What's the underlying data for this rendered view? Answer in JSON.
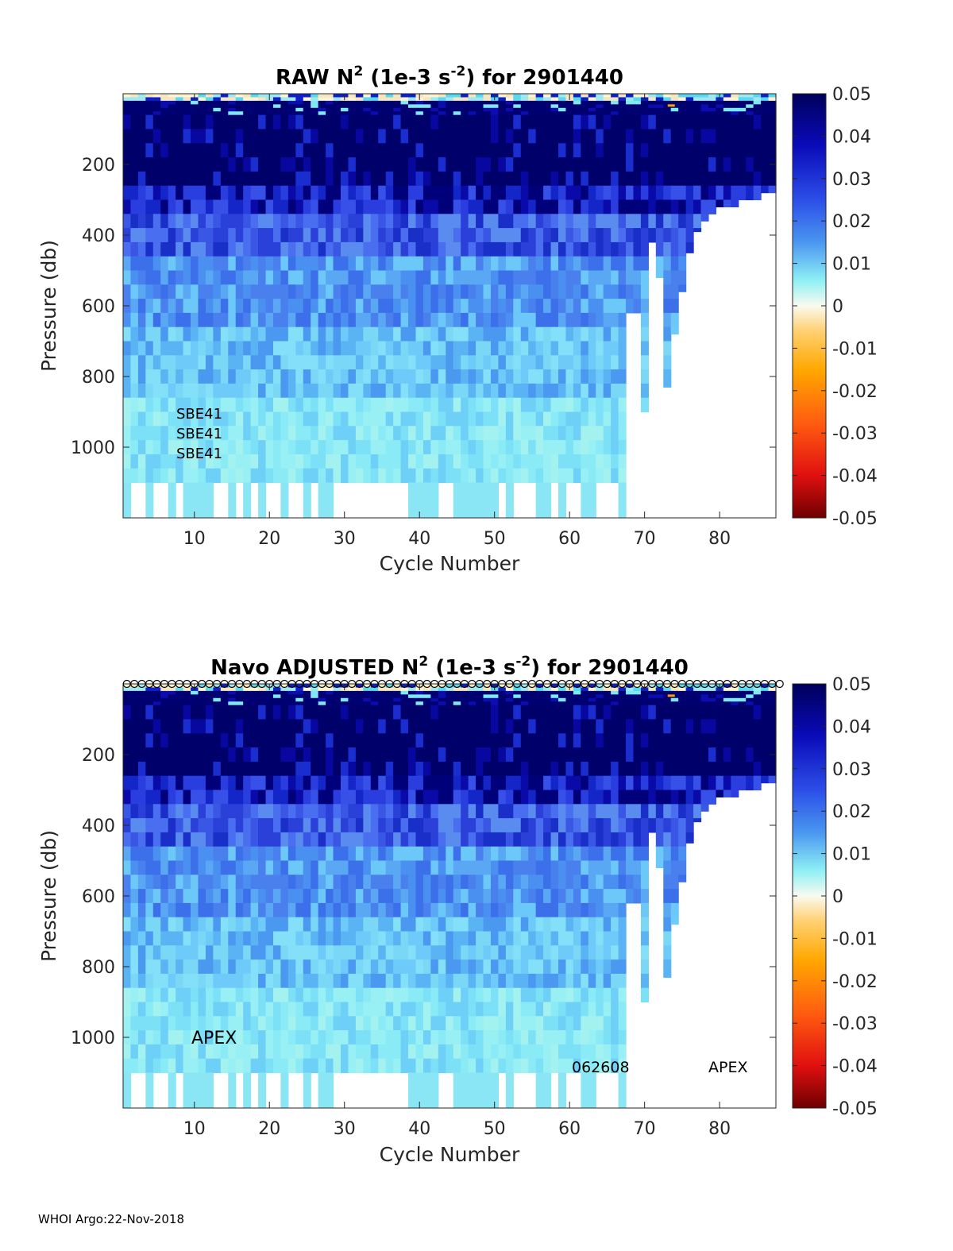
{
  "footer": "WHOI Argo:22-Nov-2018",
  "chart_data": [
    {
      "type": "heatmap",
      "title": "RAW N2 (1e-3 s-2) for 2901440",
      "title_parts": {
        "prefix": "RAW N",
        "sup1": "2",
        "mid": " (1e-3 s",
        "sup2": "-2",
        "suffix": ") for 2901440"
      },
      "xlabel": "Cycle Number",
      "ylabel": "Pressure (db)",
      "xlim": [
        1,
        87
      ],
      "ylim": [
        1200,
        0
      ],
      "xticks": [
        10,
        20,
        30,
        40,
        50,
        60,
        70,
        80
      ],
      "yticks": [
        200,
        400,
        600,
        800,
        1000
      ],
      "colorbar": {
        "range": [
          -0.05,
          0.05
        ],
        "ticks": [
          "0.05",
          "0.04",
          "0.03",
          "0.02",
          "0.01",
          "0",
          "-0.01",
          "-0.02",
          "-0.03",
          "-0.04",
          "-0.05"
        ]
      },
      "annotations": [
        "SBE41",
        "SBE41",
        "SBE41"
      ],
      "surface_markers": false
    },
    {
      "type": "heatmap",
      "title": "Navo  ADJUSTED N2 (1e-3 s-2) for 2901440",
      "title_parts": {
        "prefix": "Navo  ADJUSTED N",
        "sup1": "2",
        "mid": " (1e-3 s",
        "sup2": "-2",
        "suffix": ") for 2901440"
      },
      "xlabel": "Cycle Number",
      "ylabel": "Pressure (db)",
      "xlim": [
        1,
        87
      ],
      "ylim": [
        1200,
        0
      ],
      "xticks": [
        10,
        20,
        30,
        40,
        50,
        60,
        70,
        80
      ],
      "yticks": [
        200,
        400,
        600,
        800,
        1000
      ],
      "colorbar": {
        "range": [
          -0.05,
          0.05
        ],
        "ticks": [
          "0.05",
          "0.04",
          "0.03",
          "0.02",
          "0.01",
          "0",
          "-0.01",
          "-0.02",
          "-0.03",
          "-0.04",
          "-0.05"
        ]
      },
      "annotations": [
        "APEX",
        "062608",
        "APEX"
      ],
      "surface_markers": true
    }
  ]
}
